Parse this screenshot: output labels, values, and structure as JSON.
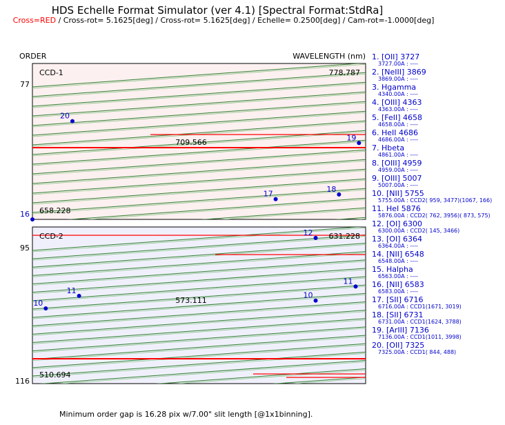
{
  "title": "HDS Echelle Format Simulator (ver 4.1) [Spectral Format:StdRa]",
  "subtitle": {
    "cross_label": "Cross=RED",
    "rest": " / Cross-rot=  5.1625[deg] / Cross-rot=  5.1625[deg] / Echelle=  0.2500[deg] / Cam-rot=-1.0000[deg]"
  },
  "footer": "Minimum order gap is 16.28 pix w/7.00\" slit length [@1x1binning].",
  "colors": {
    "order_line": "#2e7d2e",
    "cross_line": "#ff0000",
    "marker": "#0000cc",
    "ccd1_bg": "#fdf0f0",
    "ccd2_bg": "#f0f0fc",
    "line_list": "#0000cc"
  },
  "chart_data": {
    "type": "echelle-format",
    "title": "HDS Echelle Format Simulator (ver 4.1) [Spectral Format:StdRa]",
    "y_axis_label": "ORDER",
    "x_axis_label": "WAVELENGTH (nm)",
    "ccds": [
      {
        "name": "CCD-1",
        "order_first": 77,
        "wavelength_max": "778.787",
        "wavelength_mid": "709.566",
        "wavelength_min": "658.228",
        "n_orders": 19
      },
      {
        "name": "CCD-2",
        "order_first": 95,
        "order_last": 116,
        "wavelength_max": "631.228",
        "wavelength_mid": "573.111",
        "wavelength_min": "510.694",
        "n_orders": 22
      }
    ],
    "markers": [
      {
        "label": "20",
        "ccd": 0,
        "x": 0.12,
        "y": 0.37
      },
      {
        "label": "19",
        "ccd": 0,
        "x": 0.98,
        "y": 0.51
      },
      {
        "label": "17",
        "ccd": 0,
        "x": 0.73,
        "y": 0.87
      },
      {
        "label": "18",
        "ccd": 0,
        "x": 0.92,
        "y": 0.84
      },
      {
        "label": "16",
        "ccd": 0,
        "x": 0.0,
        "y": 1.0
      },
      {
        "label": "12",
        "ccd": 1,
        "x": 0.85,
        "y": 0.07
      },
      {
        "label": "11",
        "ccd": 1,
        "x": 0.14,
        "y": 0.44
      },
      {
        "label": "11",
        "ccd": 1,
        "x": 0.97,
        "y": 0.38
      },
      {
        "label": "10",
        "ccd": 1,
        "x": 0.04,
        "y": 0.52
      },
      {
        "label": "10",
        "ccd": 1,
        "x": 0.85,
        "y": 0.47
      }
    ],
    "lines": [
      {
        "name": "1. [OII] 3727",
        "detail": "3727.00A : ----"
      },
      {
        "name": "2. [NeIII] 3869",
        "detail": "3869.00A : ----"
      },
      {
        "name": "3. Hgamma",
        "detail": "4340.00A : ----"
      },
      {
        "name": "4. [OIII] 4363",
        "detail": "4363.00A : ----"
      },
      {
        "name": "5. [FeII] 4658",
        "detail": "4658.00A : ----"
      },
      {
        "name": "6. HeII 4686",
        "detail": "4686.00A : ----"
      },
      {
        "name": "7. Hbeta",
        "detail": "4861.00A : ----"
      },
      {
        "name": "8. [OIII] 4959",
        "detail": "4959.00A : ----"
      },
      {
        "name": "9. [OIII] 5007",
        "detail": "5007.00A : ----"
      },
      {
        "name": "10. [NII] 5755",
        "detail": "5755.00A : CCD2( 959, 3477)(1067,  166)"
      },
      {
        "name": "11. HeI 5876",
        "detail": "5876.00A : CCD2( 762, 3956)( 873,  575)"
      },
      {
        "name": "12. [OI] 6300",
        "detail": "6300.00A : CCD2( 145, 3466)"
      },
      {
        "name": "13. [OI] 6364",
        "detail": "6364.00A : ----"
      },
      {
        "name": "14. [NII] 6548",
        "detail": "6548.00A : ----"
      },
      {
        "name": "15. Halpha",
        "detail": "6563.00A : ----"
      },
      {
        "name": "16. [NII] 6583",
        "detail": "6583.00A : ----"
      },
      {
        "name": "17. [SII] 6716",
        "detail": "6716.00A : CCD1(1671, 3019)"
      },
      {
        "name": "18. [SII] 6731",
        "detail": "6731.00A : CCD1(1624, 3788)"
      },
      {
        "name": "19. [ArIII] 7136",
        "detail": "7136.00A : CCD1(1011, 3998)"
      },
      {
        "name": "20. [OII] 7325",
        "detail": "7325.00A : CCD1( 844,  488)"
      }
    ]
  }
}
